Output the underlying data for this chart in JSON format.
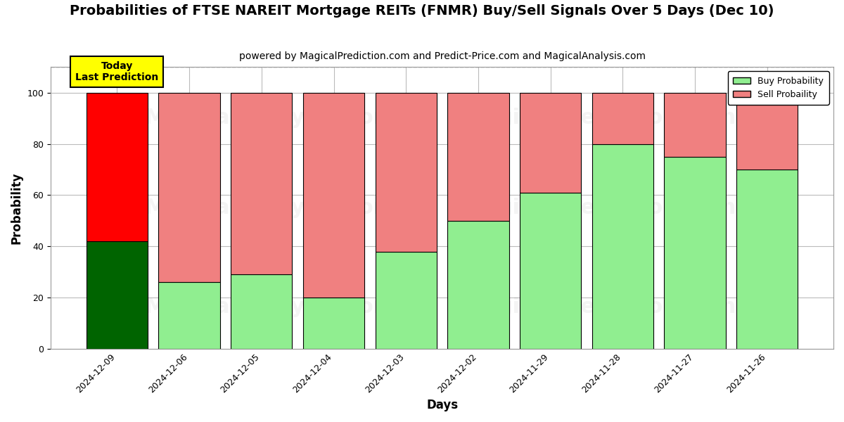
{
  "title": "Probabilities of FTSE NAREIT Mortgage REITs (FNMR) Buy/Sell Signals Over 5 Days (Dec 10)",
  "subtitle": "powered by MagicalPrediction.com and Predict-Price.com and MagicalAnalysis.com",
  "xlabel": "Days",
  "ylabel": "Probability",
  "categories": [
    "2024-12-09",
    "2024-12-06",
    "2024-12-05",
    "2024-12-04",
    "2024-12-03",
    "2024-12-02",
    "2024-11-29",
    "2024-11-28",
    "2024-11-27",
    "2024-11-26"
  ],
  "buy_values": [
    42,
    26,
    29,
    20,
    38,
    50,
    61,
    80,
    75,
    70
  ],
  "sell_values": [
    58,
    74,
    71,
    80,
    62,
    50,
    39,
    20,
    25,
    30
  ],
  "today_buy_color": "#006400",
  "today_sell_color": "#ff0000",
  "other_buy_color": "#90EE90",
  "other_sell_color": "#F08080",
  "bar_edge_color": "#000000",
  "bar_linewidth": 0.8,
  "ylim": [
    0,
    110
  ],
  "yticks": [
    0,
    20,
    40,
    60,
    80,
    100
  ],
  "dashed_line_y": 110,
  "legend_buy_label": "Buy Probability",
  "legend_sell_label": "Sell Probaility",
  "today_annotation": "Today\nLast Prediction",
  "background_color": "#ffffff",
  "grid_color": "#bbbbbb",
  "title_fontsize": 14,
  "subtitle_fontsize": 10,
  "axis_label_fontsize": 12,
  "tick_fontsize": 9,
  "bar_width": 0.85,
  "watermark1_text": "MagicalAnalysis.com",
  "watermark2_text": "MagicalPrediction.com",
  "watermark_fontsize": 22,
  "watermark_alpha": 0.13,
  "watermark_color": "#aaaaaa"
}
